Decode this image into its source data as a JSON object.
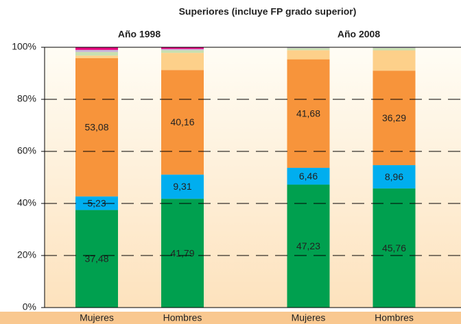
{
  "chart_data": {
    "type": "stacked-bar",
    "title": "Superiores (incluye FP grado superior)",
    "groups": [
      "Año 1998",
      "Año 2008"
    ],
    "categories": [
      "Mujeres",
      "Hombres",
      "Mujeres",
      "Hombres"
    ],
    "series": [
      {
        "color": "#00a04f",
        "values": [
          37.48,
          41.79,
          47.23,
          45.76
        ],
        "value_labels": [
          "37,48",
          "41,79",
          "47,23",
          "45,76"
        ]
      },
      {
        "color": "#00aeef",
        "values": [
          5.23,
          9.31,
          6.46,
          8.96
        ],
        "value_labels": [
          "5,23",
          "9,31",
          "6,46",
          "8,96"
        ]
      },
      {
        "color": "#f7943b",
        "values": [
          53.08,
          40.16,
          41.68,
          36.29
        ],
        "value_labels": [
          "53,08",
          "40,16",
          "41,68",
          "36,29"
        ]
      },
      {
        "color": "#fdd08a",
        "values": [
          1.0,
          6.6,
          3.5,
          7.8
        ]
      },
      {
        "color": "#c8e0b0",
        "values": [
          1.4,
          1.0,
          0.8,
          0.9
        ]
      },
      {
        "color": "#c8b4d8",
        "values": [
          0.8,
          0.5,
          0.33,
          0.29
        ]
      },
      {
        "color": "#e6007e",
        "values": [
          1.0,
          0.64,
          0,
          0
        ]
      }
    ],
    "ylim": [
      0,
      100
    ],
    "yticks": [
      {
        "value": 0,
        "label": "0%"
      },
      {
        "value": 20,
        "label": "20%"
      },
      {
        "value": 40,
        "label": "40%"
      },
      {
        "value": 60,
        "label": "60%"
      },
      {
        "value": 80,
        "label": "80%"
      },
      {
        "value": 100,
        "label": "100%"
      }
    ],
    "grid": true
  }
}
